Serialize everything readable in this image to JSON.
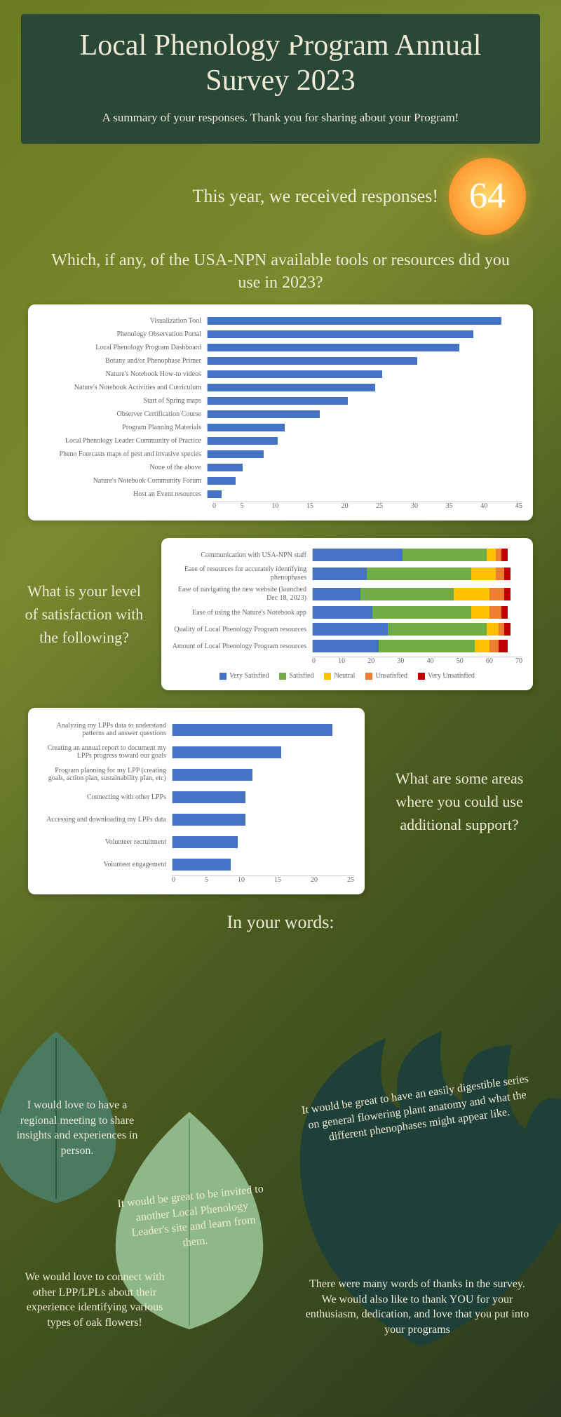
{
  "header": {
    "title": "Local Phenology Program Annual Survey 2023",
    "subtitle": "A summary of your responses. Thank you for sharing about your Program!"
  },
  "responses": {
    "text": "This year, we received responses!",
    "count": "64"
  },
  "tools": {
    "question": "Which, if any, of the USA-NPN available tools or resources did you use in 2023?",
    "max": 45,
    "tick_step": 5,
    "bar_color": "#4472c4",
    "items": [
      {
        "label": "Visualization Tool",
        "value": 42
      },
      {
        "label": "Phenology Observation Portal",
        "value": 38
      },
      {
        "label": "Local Phenology Program Dashboard",
        "value": 36
      },
      {
        "label": "Botany and/or Phenophase Primer",
        "value": 30
      },
      {
        "label": "Nature's Notebook How-to videos",
        "value": 25
      },
      {
        "label": "Nature's Notebook Activities and Curriculum",
        "value": 24
      },
      {
        "label": "Start of Spring maps",
        "value": 20
      },
      {
        "label": "Observer Certification Course",
        "value": 16
      },
      {
        "label": "Program Planning Materials",
        "value": 11
      },
      {
        "label": "Local Phenology Leader Community of Practice",
        "value": 10
      },
      {
        "label": "Pheno Forecasts maps of pest and invasive species",
        "value": 8
      },
      {
        "label": "None of the above",
        "value": 5
      },
      {
        "label": "Nature's Notebook Community Forum",
        "value": 4
      },
      {
        "label": "Host an Event resources",
        "value": 2
      }
    ]
  },
  "satisfaction": {
    "question": "What is your level of satisfaction with the following?",
    "max": 70,
    "tick_step": 10,
    "categories": [
      {
        "label": "Very Satisfied",
        "color": "#4472c4"
      },
      {
        "label": "Satisfied",
        "color": "#70ad47"
      },
      {
        "label": "Neutral",
        "color": "#ffc000"
      },
      {
        "label": "Unsatisfied",
        "color": "#ed7d31"
      },
      {
        "label": "Very Unsatisfied",
        "color": "#c00000"
      }
    ],
    "items": [
      {
        "label": "Communication with USA-NPN staff",
        "values": [
          30,
          28,
          3,
          2,
          2
        ]
      },
      {
        "label": "Ease of resources for accurately identifying phenophases",
        "values": [
          18,
          35,
          8,
          3,
          2
        ]
      },
      {
        "label": "Ease of navigating the new website (launched Dec 18, 2023)",
        "values": [
          16,
          31,
          12,
          5,
          2
        ]
      },
      {
        "label": "Ease of using the Nature's Notebook app",
        "values": [
          20,
          33,
          6,
          4,
          2
        ]
      },
      {
        "label": "Quality of Local Phenology Program resources",
        "values": [
          25,
          33,
          4,
          2,
          2
        ]
      },
      {
        "label": "Amount of Local Phenology Program resources",
        "values": [
          22,
          32,
          5,
          3,
          3
        ]
      }
    ]
  },
  "support": {
    "question": "What are some areas where you could use additional support?",
    "max": 25,
    "tick_step": 5,
    "bar_color": "#4472c4",
    "items": [
      {
        "label": "Analyzing my LPPs data to understand patterns and answer questions",
        "value": 22
      },
      {
        "label": "Creating an annual report to document my LPPs progress toward our goals",
        "value": 15
      },
      {
        "label": "Program planning for my LPP (creating goals, action plan, sustainability plan, etc)",
        "value": 11
      },
      {
        "label": "Connecting with other LPPs",
        "value": 10
      },
      {
        "label": "Accessing and downloading my LPPs data",
        "value": 10
      },
      {
        "label": "Volunteer recruitment",
        "value": 9
      },
      {
        "label": "Volunteer engagement",
        "value": 8
      }
    ]
  },
  "quotes": {
    "title": "In your words:",
    "q1": "I would love to have a regional meeting to share insights and experiences in person.",
    "q2": "It would be great to have an easily digestible series on general flowering plant anatomy and what the different phenophases might appear like.",
    "q3": "It would be great to be invited to another Local Phenology Leader's site and learn from them.",
    "q4": "We would love to connect with other LPP/LPLs about their experience identifying various types of oak flowers!",
    "q5": "There were many words of thanks in the survey. We would also like to thank YOU for your enthusiasm, dedication, and love that you put into your programs"
  },
  "leaf_colors": {
    "dark": "#1e4038",
    "mid": "#4a7a5f",
    "light": "#8fb888"
  }
}
